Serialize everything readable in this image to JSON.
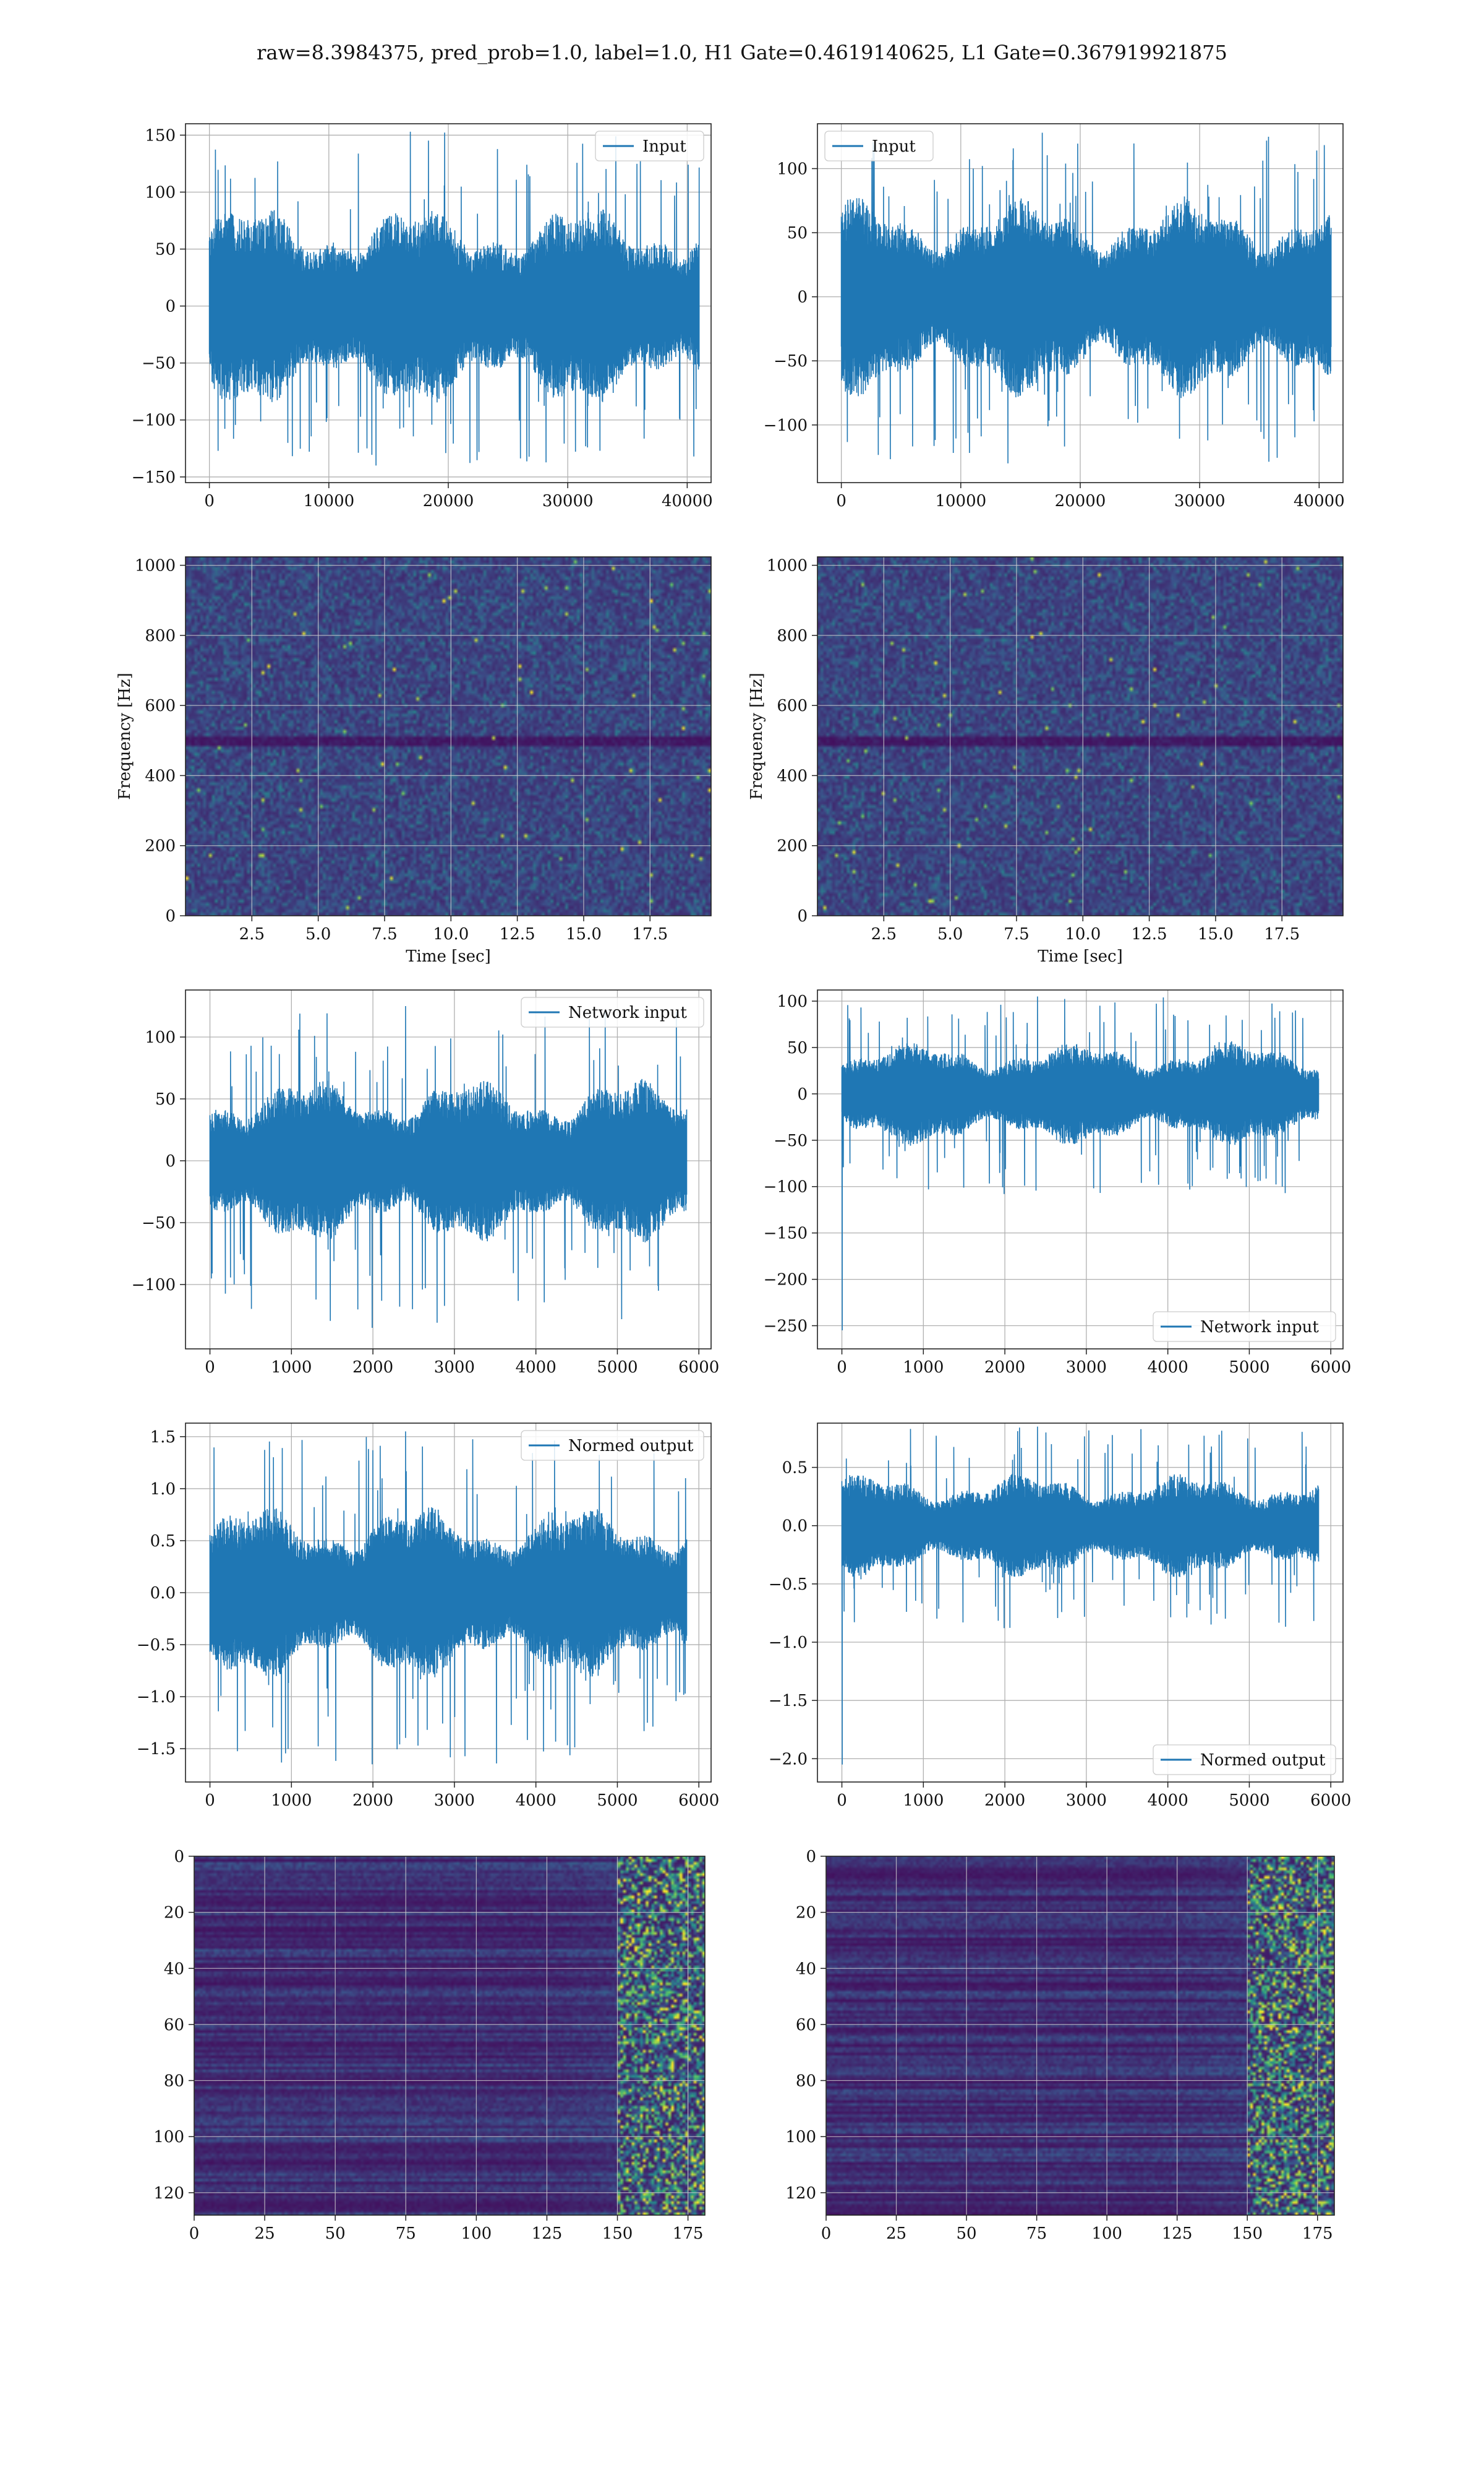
{
  "figure_title": "raw=8.3984375, pred_prob=1.0, label=1.0, H1 Gate=0.4619140625, L1 Gate=0.367919921875",
  "colors": {
    "line": "#1f77b4",
    "grid": "#b0b0b0",
    "viridis_low": "#440154",
    "viridis_high": "#fde725"
  },
  "chart_data": [
    {
      "id": "input-left",
      "type": "line",
      "row": 1,
      "col": "left",
      "series": [
        {
          "name": "Input",
          "envelope": {
            "typical": [
              -80,
              80
            ],
            "peaks": [
              -140,
              153
            ]
          }
        }
      ],
      "xlim": [
        -2000,
        42000
      ],
      "ylim": [
        -155,
        160
      ],
      "xticks": [
        0,
        10000,
        20000,
        30000,
        40000
      ],
      "yticks": [
        -150,
        -100,
        -50,
        0,
        50,
        100,
        150
      ],
      "x_range": [
        0,
        41000
      ],
      "legend": "upper right",
      "grid": true,
      "xlabel": "",
      "ylabel": ""
    },
    {
      "id": "input-right",
      "type": "line",
      "row": 1,
      "col": "right",
      "series": [
        {
          "name": "Input",
          "envelope": {
            "typical": [
              -70,
              70
            ],
            "peaks": [
              -130,
              128
            ]
          }
        }
      ],
      "xlim": [
        -2000,
        42000
      ],
      "ylim": [
        -145,
        135
      ],
      "xticks": [
        0,
        10000,
        20000,
        30000,
        40000
      ],
      "yticks": [
        -100,
        -50,
        0,
        50,
        100
      ],
      "x_range": [
        0,
        41000
      ],
      "legend": "upper left",
      "grid": true,
      "xlabel": "",
      "ylabel": ""
    },
    {
      "id": "spectrogram-left",
      "type": "heatmap",
      "row": 2,
      "col": "left",
      "xlabel": "Time [sec]",
      "ylabel": "Frequency [Hz]",
      "xlim": [
        0,
        19.8
      ],
      "ylim": [
        0,
        1024
      ],
      "xticks": [
        2.5,
        5.0,
        7.5,
        10.0,
        12.5,
        15.0,
        17.5
      ],
      "xtick_labels": [
        "2.5",
        "5.0",
        "7.5",
        "10.0",
        "12.5",
        "15.0",
        "17.5"
      ],
      "yticks": [
        0,
        200,
        400,
        600,
        800,
        1000
      ],
      "colormap": "viridis",
      "grid": true,
      "dark_band_hz": 500
    },
    {
      "id": "spectrogram-right",
      "type": "heatmap",
      "row": 2,
      "col": "right",
      "xlabel": "Time [sec]",
      "ylabel": "Frequency [Hz]",
      "xlim": [
        0,
        19.8
      ],
      "ylim": [
        0,
        1024
      ],
      "xticks": [
        2.5,
        5.0,
        7.5,
        10.0,
        12.5,
        15.0,
        17.5
      ],
      "xtick_labels": [
        "2.5",
        "5.0",
        "7.5",
        "10.0",
        "12.5",
        "15.0",
        "17.5"
      ],
      "yticks": [
        0,
        200,
        400,
        600,
        800,
        1000
      ],
      "colormap": "viridis",
      "grid": true,
      "dark_band_hz": 500
    },
    {
      "id": "network-input-left",
      "type": "line",
      "row": 3,
      "col": "left",
      "series": [
        {
          "name": "Network input",
          "envelope": {
            "typical": [
              -60,
              60
            ],
            "peaks": [
              -135,
              125
            ]
          }
        }
      ],
      "xlim": [
        -300,
        6150
      ],
      "ylim": [
        -152,
        138
      ],
      "xticks": [
        0,
        1000,
        2000,
        3000,
        4000,
        5000,
        6000
      ],
      "yticks": [
        -100,
        -50,
        0,
        50,
        100
      ],
      "x_range": [
        0,
        5850
      ],
      "legend": "upper right",
      "grid": true,
      "xlabel": "",
      "ylabel": ""
    },
    {
      "id": "network-input-right",
      "type": "line",
      "row": 3,
      "col": "right",
      "series": [
        {
          "name": "Network input",
          "envelope": {
            "typical": [
              -50,
              50
            ],
            "peaks": [
              -108,
              105
            ]
          },
          "initial_spike": -255
        }
      ],
      "xlim": [
        -300,
        6150
      ],
      "ylim": [
        -275,
        112
      ],
      "xticks": [
        0,
        1000,
        2000,
        3000,
        4000,
        5000,
        6000
      ],
      "yticks": [
        -250,
        -200,
        -150,
        -100,
        -50,
        0,
        50,
        100
      ],
      "x_range": [
        0,
        5850
      ],
      "legend": "lower right",
      "grid": true,
      "xlabel": "",
      "ylabel": ""
    },
    {
      "id": "normed-output-left",
      "type": "line",
      "row": 4,
      "col": "left",
      "series": [
        {
          "name": "Normed output",
          "envelope": {
            "typical": [
              -0.75,
              0.75
            ],
            "peaks": [
              -1.65,
              1.55
            ]
          }
        }
      ],
      "xlim": [
        -300,
        6150
      ],
      "ylim": [
        -1.82,
        1.63
      ],
      "xticks": [
        0,
        1000,
        2000,
        3000,
        4000,
        5000,
        6000
      ],
      "yticks": [
        -1.5,
        -1.0,
        -0.5,
        0.0,
        0.5,
        1.0,
        1.5
      ],
      "ytick_labels": [
        "−1.5",
        "−1.0",
        "−0.5",
        "0.0",
        "0.5",
        "1.0",
        "1.5"
      ],
      "x_range": [
        0,
        5850
      ],
      "legend": "upper right",
      "grid": true,
      "xlabel": "",
      "ylabel": ""
    },
    {
      "id": "normed-output-right",
      "type": "line",
      "row": 4,
      "col": "right",
      "series": [
        {
          "name": "Normed output",
          "envelope": {
            "typical": [
              -0.4,
              0.4
            ],
            "peaks": [
              -0.88,
              0.85
            ]
          },
          "initial_spike": -2.05
        }
      ],
      "xlim": [
        -300,
        6150
      ],
      "ylim": [
        -2.2,
        0.88
      ],
      "xticks": [
        0,
        1000,
        2000,
        3000,
        4000,
        5000,
        6000
      ],
      "yticks": [
        -2.0,
        -1.5,
        -1.0,
        -0.5,
        0.0,
        0.5
      ],
      "ytick_labels": [
        "−2.0",
        "−1.5",
        "−1.0",
        "−0.5",
        "0.0",
        "0.5"
      ],
      "x_range": [
        0,
        5850
      ],
      "legend": "lower right",
      "grid": true,
      "xlabel": "",
      "ylabel": ""
    },
    {
      "id": "feature-map-left",
      "type": "heatmap",
      "row": 5,
      "col": "left",
      "xlim": [
        0,
        181
      ],
      "ylim": [
        128,
        0
      ],
      "xticks": [
        0,
        25,
        50,
        75,
        100,
        125,
        150,
        175
      ],
      "yticks": [
        0,
        20,
        40,
        60,
        80,
        100,
        120
      ],
      "colormap": "viridis",
      "grid": true,
      "active_columns_from": 150,
      "xlabel": "",
      "ylabel": ""
    },
    {
      "id": "feature-map-right",
      "type": "heatmap",
      "row": 5,
      "col": "right",
      "xlim": [
        0,
        181
      ],
      "ylim": [
        128,
        0
      ],
      "xticks": [
        0,
        25,
        50,
        75,
        100,
        125,
        150,
        175
      ],
      "yticks": [
        0,
        20,
        40,
        60,
        80,
        100,
        120
      ],
      "colormap": "viridis",
      "grid": true,
      "active_columns_from": 150,
      "xlabel": "",
      "ylabel": ""
    }
  ]
}
